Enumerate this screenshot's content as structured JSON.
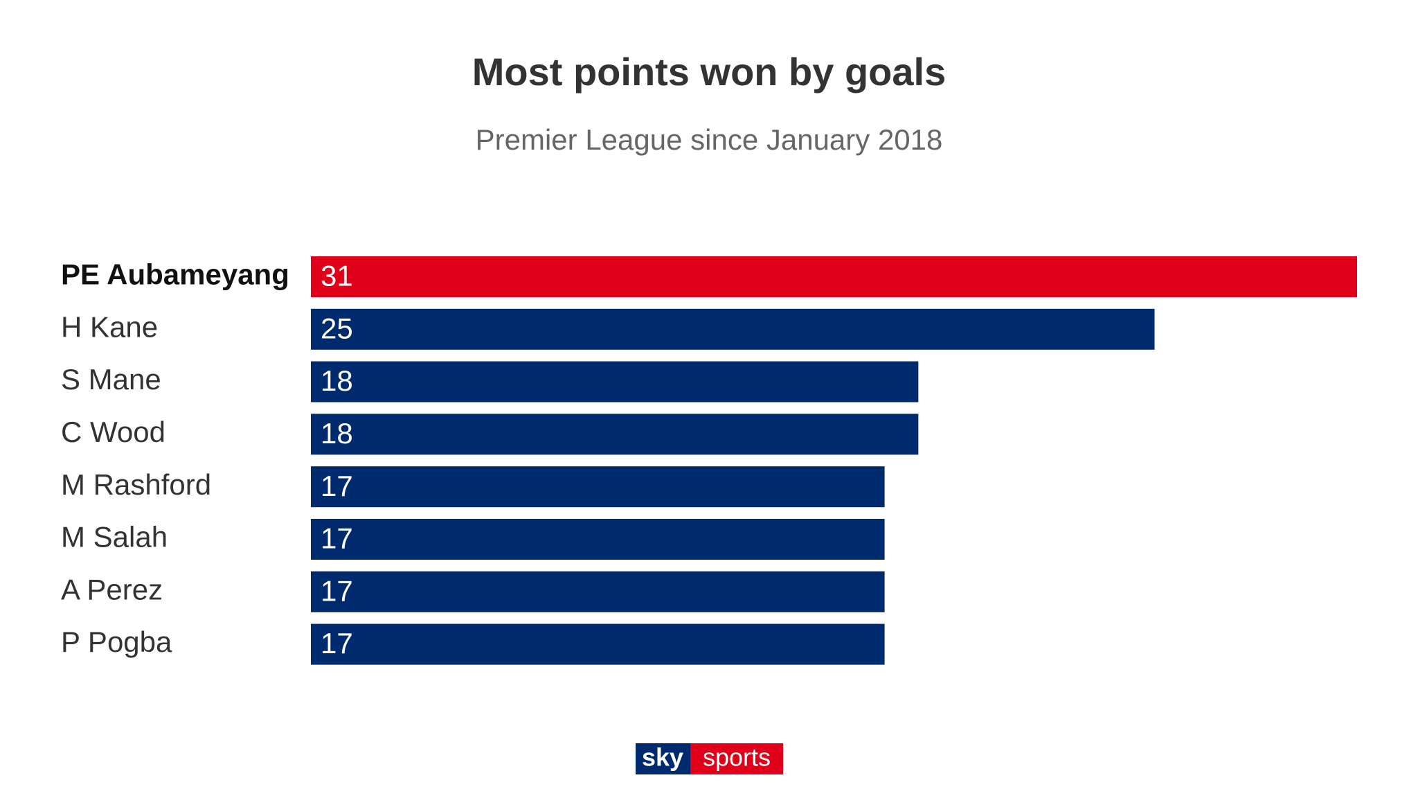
{
  "chart_data": {
    "type": "hbar",
    "title": "Most points won by goals",
    "subtitle": "Premier League since January 2018",
    "categories": [
      "PE Aubameyang",
      "H Kane",
      "S Mane",
      "C Wood",
      "M Rashford",
      "M Salah",
      "A Perez",
      "P Pogba"
    ],
    "values": [
      31,
      25,
      18,
      18,
      17,
      17,
      17,
      17
    ],
    "color": "#002a6e",
    "highlight_color": "#e10019",
    "highlight": [
      0
    ]
  },
  "footer": {
    "brand": "sky",
    "product": "sports"
  }
}
